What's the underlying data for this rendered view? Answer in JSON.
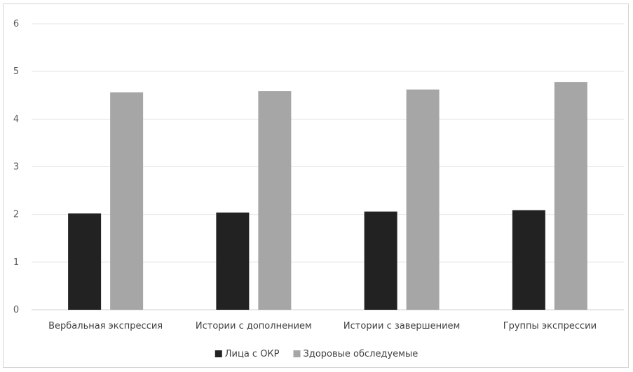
{
  "chart_data": {
    "type": "bar",
    "categories": [
      "Вербальная экспрессия",
      "Истории с дополнением",
      "Истории с завершением",
      "Группы экспрессии"
    ],
    "series": [
      {
        "name": "Лица с ОКР",
        "color": "#222222",
        "values": [
          2.02,
          2.04,
          2.06,
          2.09
        ]
      },
      {
        "name": "Здоровые обследуемые",
        "color": "#a6a6a6",
        "values": [
          4.56,
          4.59,
          4.62,
          4.78
        ]
      }
    ],
    "ylim": [
      0,
      6
    ],
    "yticks": [
      "0",
      "1",
      "2",
      "3",
      "4",
      "5",
      "6"
    ],
    "grid": true,
    "legend_position": "bottom",
    "title": "",
    "xlabel": "",
    "ylabel": ""
  }
}
